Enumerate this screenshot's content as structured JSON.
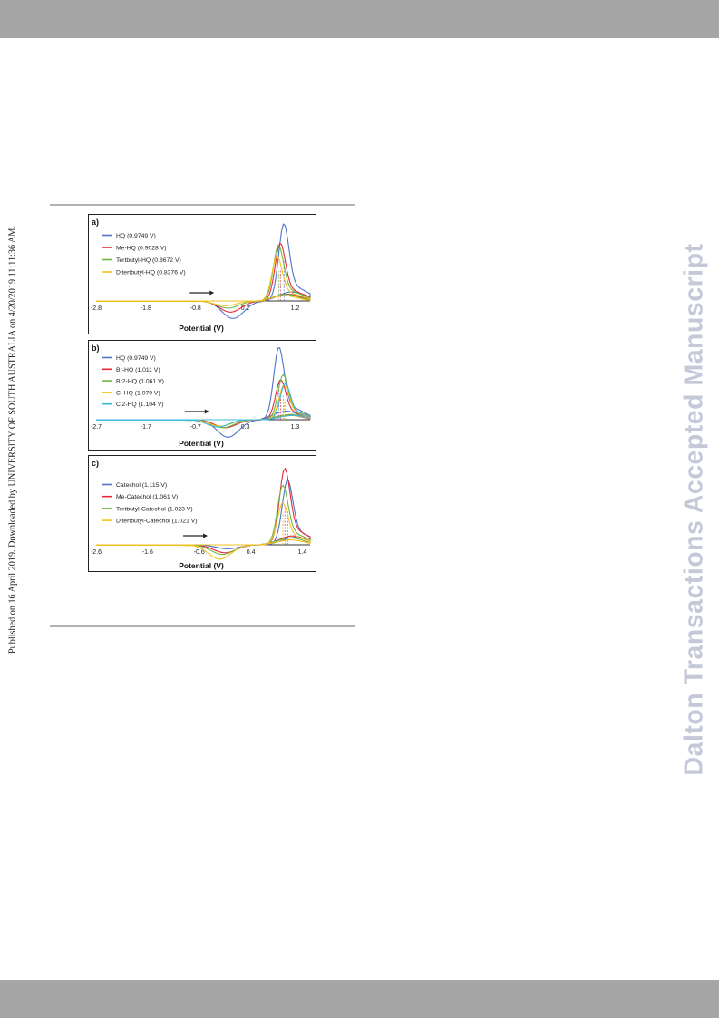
{
  "watermark": {
    "left": "Published on 16 April 2019. Downloaded by UNIVERSITY OF SOUTH AUSTRALIA on 4/20/2019 11:11:36 AM.",
    "right": "Dalton Transactions Accepted Manuscript"
  },
  "colors": {
    "blue": "#4e72c8",
    "red": "#e8283a",
    "green": "#6fb545",
    "yellow": "#f2c21c",
    "cyan": "#3ab8d8",
    "header_bar": "#a6a6a6"
  },
  "chart_data": [
    {
      "type": "line",
      "panel_label": "a)",
      "xlabel": "Potential (V)",
      "x_ticks": [
        "-2.8",
        "-1.8",
        "-0.8",
        "0.2",
        "1.2"
      ],
      "xlim": [
        -2.8,
        1.5
      ],
      "series": [
        {
          "name": "HQ (0.9749 V)",
          "color": "#4e72c8",
          "peak_potential": 0.9749,
          "anodic_peak": 1.0,
          "cathodic_peak": -0.22
        },
        {
          "name": "Me-HQ (0.9028 V)",
          "color": "#e8283a",
          "peak_potential": 0.9028,
          "anodic_peak": 0.75,
          "cathodic_peak": -0.14
        },
        {
          "name": "Tertbutyl-HQ (0.8672 V)",
          "color": "#6fb545",
          "peak_potential": 0.8672,
          "anodic_peak": 0.72,
          "cathodic_peak": -0.09
        },
        {
          "name": "Ditertbutyl-HQ (0.8376 V)",
          "color": "#f2c21c",
          "peak_potential": 0.8376,
          "anodic_peak": 0.58,
          "cathodic_peak": -0.06
        }
      ]
    },
    {
      "type": "line",
      "panel_label": "b)",
      "xlabel": "Potential (V)",
      "x_ticks": [
        "-2.7",
        "-1.7",
        "-0.7",
        "0.3",
        "1.3"
      ],
      "xlim": [
        -2.7,
        1.6
      ],
      "series": [
        {
          "name": "HQ (0.9749 V)",
          "color": "#4e72c8",
          "peak_potential": 0.9749,
          "anodic_peak": 1.0,
          "cathodic_peak": -0.22
        },
        {
          "name": "Br-HQ (1.011 V)",
          "color": "#e8283a",
          "peak_potential": 1.011,
          "anodic_peak": 0.55,
          "cathodic_peak": -0.1
        },
        {
          "name": "Br2-HQ (1.061 V)",
          "color": "#6fb545",
          "peak_potential": 1.061,
          "anodic_peak": 0.62,
          "cathodic_peak": -0.1
        },
        {
          "name": "Cl-HQ (1.079 V)",
          "color": "#f2c21c",
          "peak_potential": 1.079,
          "anodic_peak": 0.48,
          "cathodic_peak": -0.08
        },
        {
          "name": "Cl2-HQ (1.104 V)",
          "color": "#3ab8d8",
          "peak_potential": 1.104,
          "anodic_peak": 0.5,
          "cathodic_peak": -0.09
        }
      ]
    },
    {
      "type": "line",
      "panel_label": "c)",
      "xlabel": "Potential (V)",
      "x_ticks": [
        "-2.6",
        "-1.6",
        "-0.6",
        "0.4",
        "1.4"
      ],
      "xlim": [
        -2.6,
        1.55
      ],
      "series": [
        {
          "name": "Catechol (1.115 V)",
          "color": "#4e72c8",
          "peak_potential": 1.115,
          "anodic_peak": 0.85,
          "cathodic_peak": -0.05
        },
        {
          "name": "Me-Catechol (1.061 V)",
          "color": "#e8283a",
          "peak_potential": 1.061,
          "anodic_peak": 1.0,
          "cathodic_peak": -0.1
        },
        {
          "name": "Tertbutyl-Catechol (1.023 V)",
          "color": "#6fb545",
          "peak_potential": 1.023,
          "anodic_peak": 0.78,
          "cathodic_peak": -0.12
        },
        {
          "name": "Ditertbutyl-Catechol (1.021 V)",
          "color": "#f2c21c",
          "peak_potential": 1.021,
          "anodic_peak": 0.55,
          "cathodic_peak": -0.18
        }
      ]
    }
  ]
}
